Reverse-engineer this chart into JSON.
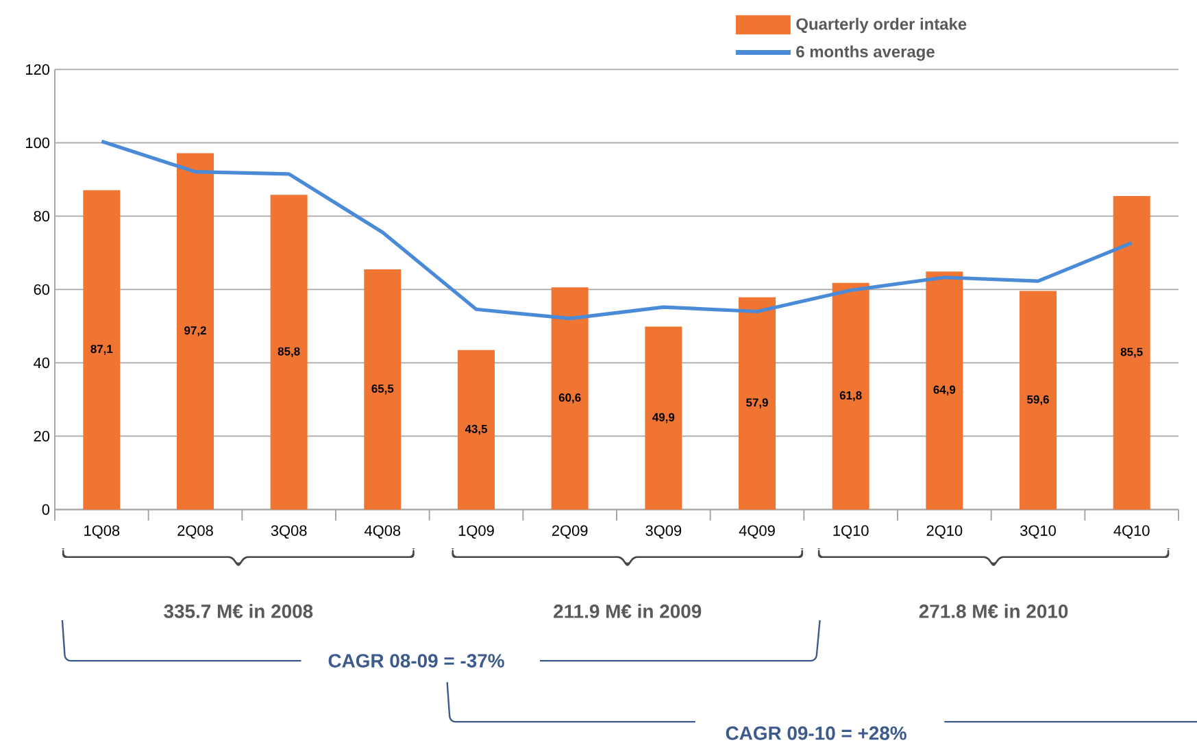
{
  "chart_data": {
    "type": "bar",
    "categories": [
      "1Q08",
      "2Q08",
      "3Q08",
      "4Q08",
      "1Q09",
      "2Q09",
      "3Q09",
      "4Q09",
      "1Q10",
      "2Q10",
      "3Q10",
      "4Q10"
    ],
    "series": [
      {
        "name": "Quarterly order intake",
        "color": "#f07533",
        "values": [
          87.1,
          97.2,
          85.8,
          65.5,
          43.5,
          60.6,
          49.9,
          57.9,
          61.8,
          64.9,
          59.6,
          85.5
        ],
        "value_labels": [
          "87,1",
          "97,2",
          "85,8",
          "65,5",
          "43,5",
          "60,6",
          "49,9",
          "57,9",
          "61,8",
          "64,9",
          "59,6",
          "85,5"
        ]
      },
      {
        "name": "6 months average",
        "type": "line",
        "color": "#4a8ad6",
        "values": [
          100.4,
          92.1,
          91.5,
          75.6,
          54.6,
          52.1,
          55.2,
          54.0,
          59.8,
          63.3,
          62.3,
          72.7
        ]
      }
    ],
    "ylim": [
      0,
      120
    ],
    "yticks": [
      0,
      20,
      40,
      60,
      80,
      100,
      120
    ],
    "grid": "y",
    "legend": "top right",
    "marker": "none",
    "line_style": "solid",
    "annotations": [
      "335.7 M€ in 2008",
      "211.9 M€ in 2009",
      "271.8 M€ in 2010",
      "CAGR 08-09 = -37%",
      "CAGR 09-10 =  +28%"
    ]
  }
}
